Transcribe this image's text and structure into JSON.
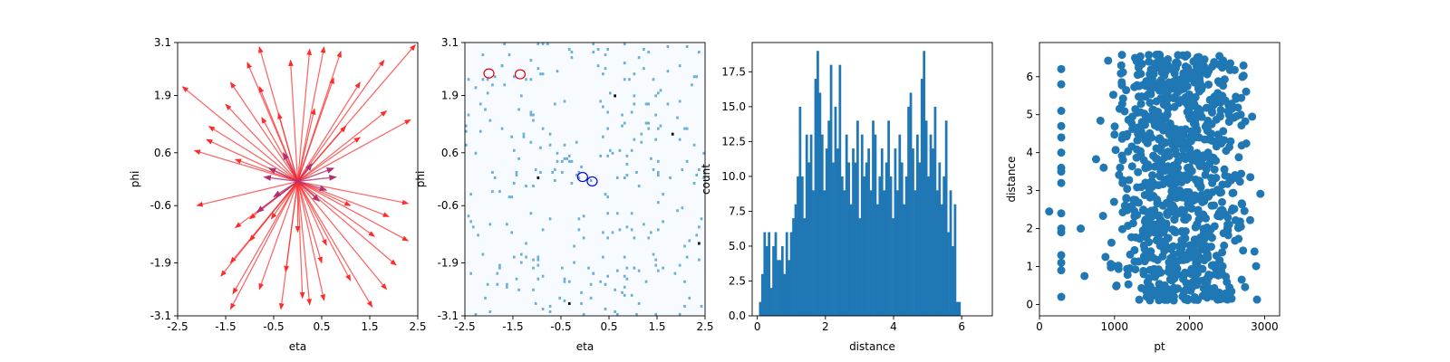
{
  "chart_data": [
    {
      "type": "scatter",
      "subtype": "arrow-field",
      "xlabel": "eta",
      "ylabel": "phi",
      "xlim": [
        -2.5,
        2.5
      ],
      "ylim": [
        -3.1,
        3.1
      ],
      "xticks": [
        "-2.5",
        "-1.5",
        "-0.5",
        "0.5",
        "1.5",
        "2.5"
      ],
      "yticks": [
        "3.1",
        "1.9",
        "0.6",
        "-0.6",
        "-1.9",
        "-3.1"
      ],
      "origin": {
        "eta": 0.0,
        "phi": -0.05
      },
      "arrow_color": "#ff2a2a",
      "short_arrow_color": "#b03070",
      "long_arrows": [
        {
          "eta": 2.45,
          "phi": 3.05
        },
        {
          "eta": 1.8,
          "phi": 2.7
        },
        {
          "eta": 0.9,
          "phi": 2.9
        },
        {
          "eta": 0.55,
          "phi": 3.0
        },
        {
          "eta": 0.25,
          "phi": 2.95
        },
        {
          "eta": -0.15,
          "phi": 2.7
        },
        {
          "eta": -0.8,
          "phi": 3.0
        },
        {
          "eta": -1.05,
          "phi": 2.65
        },
        {
          "eta": -1.4,
          "phi": 2.2
        },
        {
          "eta": -2.4,
          "phi": 2.1
        },
        {
          "eta": -0.8,
          "phi": 2.1
        },
        {
          "eta": 0.75,
          "phi": 2.3
        },
        {
          "eta": 1.3,
          "phi": 2.2
        },
        {
          "eta": 1.85,
          "phi": 1.55
        },
        {
          "eta": 2.35,
          "phi": 1.35
        },
        {
          "eta": 1.3,
          "phi": 0.95
        },
        {
          "eta": -1.5,
          "phi": 1.7
        },
        {
          "eta": -1.85,
          "phi": 1.2
        },
        {
          "eta": -1.9,
          "phi": 0.9
        },
        {
          "eta": -2.15,
          "phi": 0.65
        },
        {
          "eta": -1.3,
          "phi": 0.45
        },
        {
          "eta": -0.4,
          "phi": 1.5
        },
        {
          "eta": 0.35,
          "phi": 1.6
        },
        {
          "eta": -2.1,
          "phi": -0.6
        },
        {
          "eta": -1.0,
          "phi": -0.9
        },
        {
          "eta": -1.3,
          "phi": -1.1
        },
        {
          "eta": -1.0,
          "phi": -1.4
        },
        {
          "eta": -1.4,
          "phi": -1.9
        },
        {
          "eta": -1.6,
          "phi": -2.2
        },
        {
          "eta": -1.35,
          "phi": -2.6
        },
        {
          "eta": -1.4,
          "phi": -2.95
        },
        {
          "eta": -0.8,
          "phi": -2.5
        },
        {
          "eta": -0.35,
          "phi": -2.95
        },
        {
          "eta": -0.25,
          "phi": -2.1
        },
        {
          "eta": 0.1,
          "phi": -2.7
        },
        {
          "eta": 0.25,
          "phi": -2.85
        },
        {
          "eta": 0.55,
          "phi": -2.75
        },
        {
          "eta": 1.1,
          "phi": -2.3
        },
        {
          "eta": 1.55,
          "phi": -2.9
        },
        {
          "eta": 1.85,
          "phi": -2.5
        },
        {
          "eta": 2.05,
          "phi": -1.95
        },
        {
          "eta": 2.3,
          "phi": -1.4
        },
        {
          "eta": 1.9,
          "phi": -0.85
        },
        {
          "eta": 2.3,
          "phi": -0.55
        },
        {
          "eta": 1.1,
          "phi": -0.6
        },
        {
          "eta": 1.6,
          "phi": -1.3
        },
        {
          "eta": 0.6,
          "phi": -1.5
        },
        {
          "eta": 0.5,
          "phi": -1.9
        },
        {
          "eta": 0.0,
          "phi": -1.2
        },
        {
          "eta": -0.55,
          "phi": -0.9
        },
        {
          "eta": 1.0,
          "phi": 1.2
        },
        {
          "eta": -0.75,
          "phi": 1.4
        }
      ],
      "short_arrows": [
        {
          "eta": 0.8,
          "phi": 0.05
        },
        {
          "eta": 0.6,
          "phi": -0.25
        },
        {
          "eta": -0.6,
          "phi": 0.25
        },
        {
          "eta": -0.5,
          "phi": -0.4
        },
        {
          "eta": 0.3,
          "phi": 0.35
        },
        {
          "eta": -0.3,
          "phi": 0.6
        },
        {
          "eta": 0.75,
          "phi": 0.25
        },
        {
          "eta": -0.85,
          "phi": -0.75
        },
        {
          "eta": 0.45,
          "phi": -0.5
        },
        {
          "eta": -0.7,
          "phi": 0.05
        }
      ]
    },
    {
      "type": "heatmap",
      "xlabel": "eta",
      "ylabel": "phi",
      "xlim": [
        -2.5,
        2.5
      ],
      "ylim": [
        -3.1,
        3.1
      ],
      "xticks": [
        "-2.5",
        "-1.5",
        "-0.5",
        "0.5",
        "1.5",
        "2.5"
      ],
      "yticks": [
        "3.1",
        "1.9",
        "0.6",
        "-0.6",
        "-1.9",
        "-3.1"
      ],
      "bins": [
        100,
        100
      ],
      "colormap": [
        "#f7fbff",
        "#6baed6",
        "#08306b",
        "#000000"
      ],
      "circles_red": [
        {
          "eta": -2.0,
          "phi": 2.4
        },
        {
          "eta": -1.35,
          "phi": 2.38
        }
      ],
      "circles_blue": [
        {
          "eta": -0.05,
          "phi": 0.05
        },
        {
          "eta": 0.15,
          "phi": -0.05
        }
      ]
    },
    {
      "type": "bar",
      "subtype": "histogram",
      "xlabel": "distance",
      "ylabel": "count",
      "xlim": [
        -0.15,
        6.9
      ],
      "ylim": [
        0,
        19.6
      ],
      "xticks": [
        "0",
        "2",
        "4",
        "6"
      ],
      "yticks": [
        "0.0",
        "2.5",
        "5.0",
        "7.5",
        "10.0",
        "12.5",
        "15.0",
        "17.5"
      ],
      "bin_start": 0.05,
      "bin_width": 0.065,
      "values": [
        1,
        3,
        6,
        5,
        6,
        2,
        5,
        6,
        4,
        4,
        5,
        3,
        6,
        4,
        6,
        7,
        8,
        10,
        15,
        10,
        7,
        13,
        11,
        13,
        9,
        17,
        19,
        16,
        13,
        9,
        12,
        14,
        18,
        11,
        15,
        12,
        18,
        10,
        9,
        13,
        11,
        8,
        12,
        11,
        14,
        7,
        13,
        10,
        11,
        12,
        9,
        14,
        13,
        8,
        10,
        12,
        9,
        11,
        14,
        10,
        7,
        12,
        9,
        13,
        11,
        8,
        10,
        15,
        16,
        12,
        9,
        13,
        11,
        17,
        19,
        14,
        10,
        13,
        12,
        15,
        9,
        11,
        8,
        10,
        14,
        6,
        9,
        5,
        8,
        1,
        1
      ],
      "bar_color": "#1f77b4"
    },
    {
      "type": "scatter",
      "xlabel": "pt",
      "ylabel": "distance",
      "xlim": [
        0,
        3200
      ],
      "ylim": [
        -0.3,
        6.9
      ],
      "xticks": [
        "0",
        "1000",
        "2000",
        "3000"
      ],
      "yticks": [
        "0",
        "1",
        "2",
        "3",
        "4",
        "5",
        "6"
      ],
      "point_color": "#1f77b4",
      "stripe_points": [
        {
          "x": 290,
          "y": 6.2
        },
        {
          "x": 290,
          "y": 5.8
        },
        {
          "x": 290,
          "y": 5.1
        },
        {
          "x": 290,
          "y": 4.7
        },
        {
          "x": 290,
          "y": 4.4
        },
        {
          "x": 290,
          "y": 4.0
        },
        {
          "x": 290,
          "y": 3.6
        },
        {
          "x": 290,
          "y": 3.5
        },
        {
          "x": 290,
          "y": 3.2
        },
        {
          "x": 290,
          "y": 2.4
        },
        {
          "x": 290,
          "y": 2.0
        },
        {
          "x": 290,
          "y": 1.9
        },
        {
          "x": 290,
          "y": 1.3
        },
        {
          "x": 290,
          "y": 1.1
        },
        {
          "x": 290,
          "y": 0.9
        },
        {
          "x": 290,
          "y": 0.2
        },
        {
          "x": 130,
          "y": 2.45
        },
        {
          "x": 550,
          "y": 2.0
        },
        {
          "x": 600,
          "y": 0.75
        }
      ],
      "bulk_range_x": [
        620,
        3100
      ],
      "bulk_range_y": [
        0.1,
        6.6
      ],
      "bulk_count": 900
    }
  ]
}
